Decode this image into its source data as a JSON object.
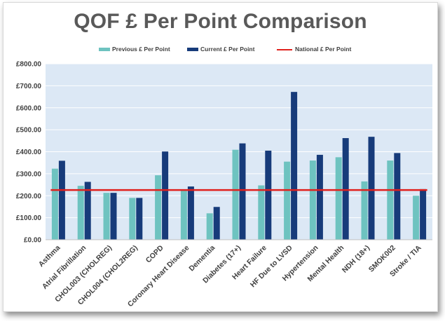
{
  "chart_data": {
    "type": "bar",
    "title": "QOF £ Per Point Comparison",
    "categories": [
      "Asthma",
      "Atrial Fibrillation",
      "CHOL003 (CHOLREG)",
      "CHOL004 (CHOL2REG)",
      "COPD",
      "Coronary Heart Disease",
      "Dementia",
      "Diabetes (17+)",
      "Heart Failure",
      "HF Due to LVSD",
      "Hypertension",
      "Mental Health",
      "NDH (18+)",
      "SMOK002",
      "Stroke / TIA"
    ],
    "series": [
      {
        "name": "Previous £ Per Point",
        "color": "#6ec3c0",
        "values": [
          323,
          245,
          213,
          190,
          293,
          224,
          120,
          409,
          247,
          355,
          360,
          375,
          265,
          360,
          200
        ]
      },
      {
        "name": "Current £ Per Point",
        "color": "#173b7a",
        "values": [
          359,
          263,
          213,
          190,
          401,
          242,
          149,
          438,
          405,
          672,
          386,
          462,
          468,
          394,
          230
        ]
      }
    ],
    "reference_line": {
      "name": "National £ Per Point",
      "value": 226,
      "color": "#e0211d"
    },
    "ylim": [
      0,
      800
    ],
    "yticks": [
      0,
      100,
      200,
      300,
      400,
      500,
      600,
      700,
      800
    ],
    "ytick_labels": [
      "£0.00",
      "£100.00",
      "£200.00",
      "£300.00",
      "£400.00",
      "£500.00",
      "£600.00",
      "£700.00",
      "£800.00"
    ],
    "xlabel": "",
    "ylabel": "",
    "legend_position": "top-center",
    "plot_background": "#dce8f5",
    "grid": true
  }
}
